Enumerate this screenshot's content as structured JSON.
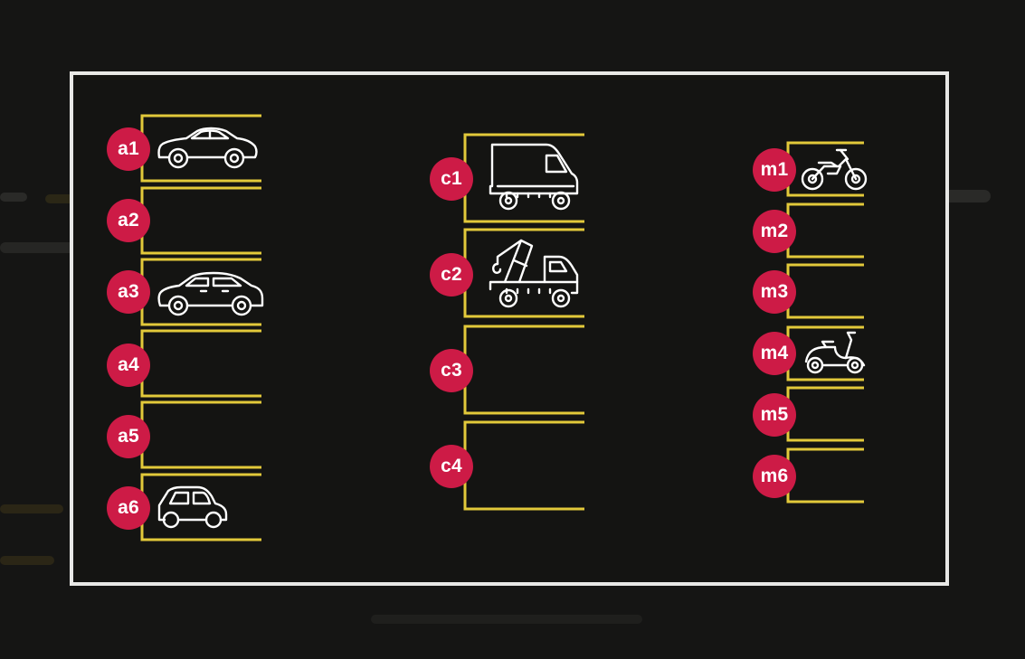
{
  "colors": {
    "background": "#151514",
    "frame": "#e8e8e6",
    "spot_lines": "#e2c93a",
    "badge": "#cd1b46",
    "badge_text": "#ffffff",
    "icon": "#ffffff"
  },
  "zones": [
    {
      "name": "a",
      "spots": [
        {
          "label": "a1",
          "vehicle": "sedan-car-icon"
        },
        {
          "label": "a2",
          "vehicle": null
        },
        {
          "label": "a3",
          "vehicle": "hatchback-car-icon"
        },
        {
          "label": "a4",
          "vehicle": null
        },
        {
          "label": "a5",
          "vehicle": null
        },
        {
          "label": "a6",
          "vehicle": "compact-car-icon"
        }
      ]
    },
    {
      "name": "c",
      "spots": [
        {
          "label": "c1",
          "vehicle": "delivery-van-icon"
        },
        {
          "label": "c2",
          "vehicle": "tow-truck-icon"
        },
        {
          "label": "c3",
          "vehicle": null
        },
        {
          "label": "c4",
          "vehicle": null
        }
      ]
    },
    {
      "name": "m",
      "spots": [
        {
          "label": "m1",
          "vehicle": "dirt-bike-icon"
        },
        {
          "label": "m2",
          "vehicle": null
        },
        {
          "label": "m3",
          "vehicle": null
        },
        {
          "label": "m4",
          "vehicle": "scooter-icon"
        },
        {
          "label": "m5",
          "vehicle": null
        },
        {
          "label": "m6",
          "vehicle": null
        }
      ]
    }
  ]
}
